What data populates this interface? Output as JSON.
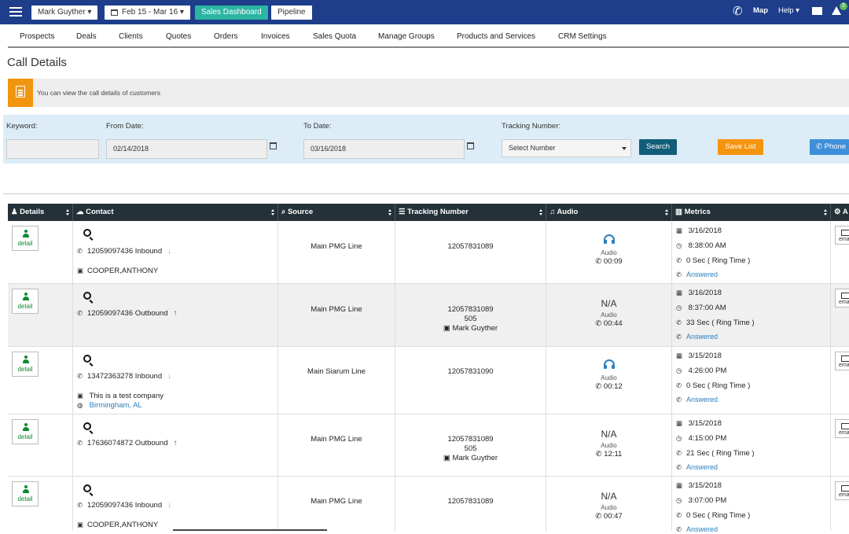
{
  "topbar": {
    "user_menu": "Mark Guyther ▾",
    "date_range": "Feb 15 - Mar 16 ▾",
    "sales_dashboard": "Sales Dashboard",
    "pipeline": "Pipeline",
    "map": "Map",
    "help": "Help ▾",
    "notifications_count": "3"
  },
  "nav": {
    "items": [
      "Prospects",
      "Deals",
      "Clients",
      "Quotes",
      "Orders",
      "Invoices",
      "Sales Quota",
      "Manage Groups",
      "Products and Services",
      "CRM Settings"
    ]
  },
  "page": {
    "title": "Call Details",
    "info_text": "You can view the call details of customers"
  },
  "filter": {
    "keyword_label": "Keyword:",
    "keyword_value": "",
    "from_label": "From Date:",
    "from_value": "02/14/2018",
    "to_label": "To Date:",
    "to_value": "03/16/2018",
    "tracking_label": "Tracking Number:",
    "tracking_value": "Select Number",
    "search_btn": "Search",
    "save_list_btn": "Save List",
    "phone_btn": "Phone"
  },
  "table": {
    "headers": {
      "details": "Details",
      "contact": "Contact",
      "source": "Source",
      "tracking": "Tracking Number",
      "audio": "Audio",
      "metrics": "Metrics",
      "actions": "A"
    },
    "detail_label": "detail",
    "audio_label": "Audio",
    "email_label": "ema",
    "rows": [
      {
        "phone": "12059097436 Inbound",
        "direction": "in",
        "company": "COOPER,ANTHONY",
        "location": "",
        "source": "Main PMG Line",
        "tracking": "12057831089",
        "ext": "",
        "agent": "",
        "audio_available": true,
        "duration": "00:09",
        "date": "3/16/2018",
        "time": "8:38:00 AM",
        "ring": "0 Sec ( Ring Time )",
        "status": "Answered"
      },
      {
        "phone": "12059097436 Outbound",
        "direction": "out",
        "company": "",
        "location": "",
        "source": "Main PMG Line",
        "tracking": "12057831089",
        "ext": "505",
        "agent": "Mark Guyther",
        "audio_available": false,
        "na": "N/A",
        "duration": "00:44",
        "date": "3/16/2018",
        "time": "8:37:00 AM",
        "ring": "33 Sec ( Ring Time )",
        "status": "Answered"
      },
      {
        "phone": "13472363278 Inbound",
        "direction": "in",
        "company": "This is a test company",
        "location": "Birmingham, AL",
        "source": "Main Siarum Line",
        "tracking": "12057831090",
        "ext": "",
        "agent": "",
        "audio_available": true,
        "duration": "00:12",
        "date": "3/15/2018",
        "time": "4:26:00 PM",
        "ring": "0 Sec ( Ring Time )",
        "status": "Answered"
      },
      {
        "phone": "17636074872 Outbound",
        "direction": "out",
        "company": "",
        "location": "",
        "source": "Main PMG Line",
        "tracking": "12057831089",
        "ext": "505",
        "agent": "Mark Guyther",
        "audio_available": false,
        "na": "N/A",
        "duration": "12:11",
        "date": "3/15/2018",
        "time": "4:15:00 PM",
        "ring": "21 Sec ( Ring Time )",
        "status": "Answered"
      },
      {
        "phone": "12059097436 Inbound",
        "direction": "in",
        "company": "COOPER,ANTHONY",
        "location": "",
        "source": "Main PMG Line",
        "tracking": "12057831089",
        "ext": "",
        "agent": "",
        "audio_available": false,
        "na": "N/A",
        "duration": "00:47",
        "date": "3/15/2018",
        "time": "3:07:00 PM",
        "ring": "0 Sec ( Ring Time )",
        "status": "Answered"
      }
    ]
  }
}
